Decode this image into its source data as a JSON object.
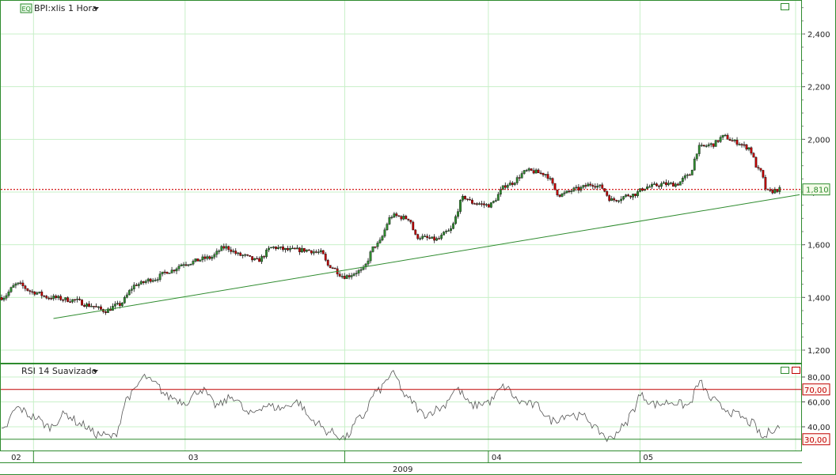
{
  "header": {
    "symbol_badge": "EQ",
    "title": "BPI:xlis 1 Hora",
    "rsi_title": "RSI 14 Suavizado"
  },
  "colors": {
    "up": "#2e8b2e",
    "down": "#c00000",
    "grid": "#c8f0c8",
    "trend": "#2e8b2e",
    "price_line": "#d00000",
    "rsi_upper": "#c00000",
    "rsi_lower": "#2e8b2e",
    "frame": "#2e8b2e"
  },
  "icons": [
    "dropdown-triangle-icon",
    "maximize-icon",
    "restore-icon"
  ],
  "chart_data": [
    {
      "type": "candlestick",
      "title": "BPI:xlis 1 Hora",
      "ylim": [
        1.16,
        2.56
      ],
      "yticks": [
        "1,200",
        "1,400",
        "1,600",
        "1,800",
        "2,000",
        "2,200",
        "2,400"
      ],
      "ytick_values": [
        1.2,
        1.4,
        1.6,
        1.8,
        2.0,
        2.2,
        2.4
      ],
      "last_price": 1.81,
      "last_price_label": "1,810",
      "x_labels": [
        "02",
        "03",
        "04",
        "05"
      ],
      "year_label": "2009",
      "trendline": [
        [
          0.065,
          1.32
        ],
        [
          1.0,
          1.79
        ]
      ],
      "anchors": [
        [
          0.0,
          1.4
        ],
        [
          0.02,
          1.45
        ],
        [
          0.04,
          1.42
        ],
        [
          0.06,
          1.4
        ],
        [
          0.09,
          1.39
        ],
        [
          0.11,
          1.37
        ],
        [
          0.13,
          1.35
        ],
        [
          0.145,
          1.37
        ],
        [
          0.17,
          1.45
        ],
        [
          0.19,
          1.47
        ],
        [
          0.21,
          1.5
        ],
        [
          0.23,
          1.53
        ],
        [
          0.26,
          1.55
        ],
        [
          0.28,
          1.59
        ],
        [
          0.3,
          1.56
        ],
        [
          0.32,
          1.54
        ],
        [
          0.34,
          1.59
        ],
        [
          0.36,
          1.58
        ],
        [
          0.38,
          1.58
        ],
        [
          0.4,
          1.57
        ],
        [
          0.41,
          1.52
        ],
        [
          0.43,
          1.48
        ],
        [
          0.45,
          1.5
        ],
        [
          0.47,
          1.6
        ],
        [
          0.49,
          1.71
        ],
        [
          0.51,
          1.7
        ],
        [
          0.52,
          1.63
        ],
        [
          0.545,
          1.62
        ],
        [
          0.56,
          1.65
        ],
        [
          0.58,
          1.78
        ],
        [
          0.59,
          1.76
        ],
        [
          0.61,
          1.75
        ],
        [
          0.635,
          1.83
        ],
        [
          0.66,
          1.88
        ],
        [
          0.68,
          1.87
        ],
        [
          0.7,
          1.79
        ],
        [
          0.72,
          1.81
        ],
        [
          0.74,
          1.83
        ],
        [
          0.75,
          1.82
        ],
        [
          0.765,
          1.77
        ],
        [
          0.79,
          1.79
        ],
        [
          0.81,
          1.82
        ],
        [
          0.83,
          1.83
        ],
        [
          0.845,
          1.83
        ],
        [
          0.86,
          1.86
        ],
        [
          0.875,
          1.97
        ],
        [
          0.89,
          1.98
        ],
        [
          0.905,
          2.01
        ],
        [
          0.92,
          1.99
        ],
        [
          0.935,
          1.97
        ],
        [
          0.95,
          1.88
        ],
        [
          0.96,
          1.8
        ],
        [
          0.975,
          1.81
        ]
      ]
    },
    {
      "type": "line",
      "title": "RSI 14 Suavizado",
      "ylim": [
        24,
        83
      ],
      "yticks": [
        "40,00",
        "60,00",
        "80,00"
      ],
      "ytick_values": [
        40,
        60,
        80
      ],
      "levels": [
        70,
        30
      ],
      "level_labels": [
        "70,00",
        "30,00"
      ],
      "anchors": [
        [
          0.0,
          36
        ],
        [
          0.02,
          55
        ],
        [
          0.04,
          48
        ],
        [
          0.06,
          40
        ],
        [
          0.08,
          50
        ],
        [
          0.1,
          42
        ],
        [
          0.12,
          34
        ],
        [
          0.14,
          32
        ],
        [
          0.16,
          65
        ],
        [
          0.18,
          80
        ],
        [
          0.19,
          75
        ],
        [
          0.21,
          64
        ],
        [
          0.23,
          60
        ],
        [
          0.25,
          70
        ],
        [
          0.27,
          57
        ],
        [
          0.29,
          64
        ],
        [
          0.31,
          50
        ],
        [
          0.33,
          57
        ],
        [
          0.35,
          55
        ],
        [
          0.37,
          60
        ],
        [
          0.39,
          45
        ],
        [
          0.41,
          36
        ],
        [
          0.43,
          31
        ],
        [
          0.45,
          47
        ],
        [
          0.47,
          68
        ],
        [
          0.49,
          82
        ],
        [
          0.51,
          62
        ],
        [
          0.53,
          50
        ],
        [
          0.55,
          55
        ],
        [
          0.57,
          70
        ],
        [
          0.59,
          57
        ],
        [
          0.61,
          60
        ],
        [
          0.63,
          72
        ],
        [
          0.65,
          60
        ],
        [
          0.67,
          57
        ],
        [
          0.69,
          45
        ],
        [
          0.71,
          50
        ],
        [
          0.73,
          48
        ],
        [
          0.75,
          36
        ],
        [
          0.76,
          30
        ],
        [
          0.78,
          40
        ],
        [
          0.79,
          52
        ],
        [
          0.8,
          65
        ],
        [
          0.82,
          58
        ],
        [
          0.84,
          60
        ],
        [
          0.86,
          57
        ],
        [
          0.875,
          75
        ],
        [
          0.89,
          62
        ],
        [
          0.905,
          55
        ],
        [
          0.92,
          50
        ],
        [
          0.94,
          43
        ],
        [
          0.955,
          31
        ],
        [
          0.965,
          38
        ],
        [
          0.975,
          40
        ]
      ]
    }
  ]
}
